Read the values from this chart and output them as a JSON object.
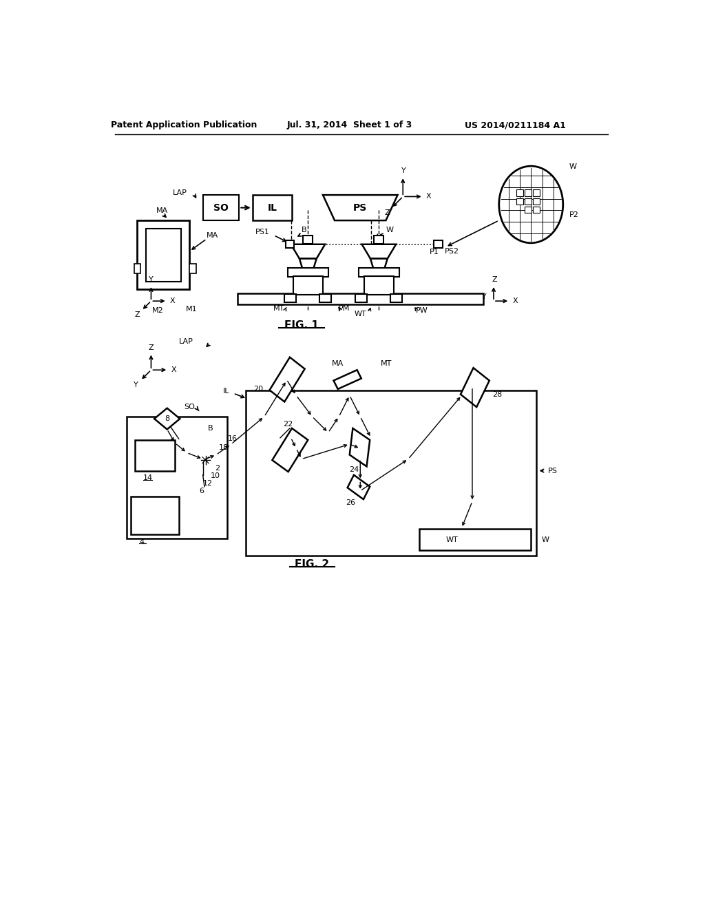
{
  "header_left": "Patent Application Publication",
  "header_center": "Jul. 31, 2014  Sheet 1 of 3",
  "header_right": "US 2014/0211184 A1",
  "fig1_caption": "FIG. 1",
  "fig2_caption": "FIG. 2",
  "bg_color": "#ffffff",
  "line_color": "#000000",
  "text_color": "#000000"
}
